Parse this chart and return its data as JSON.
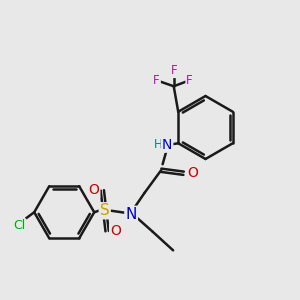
{
  "background_color": "#e8e8e8",
  "atom_colors": {
    "C": "#000000",
    "N": "#0000cc",
    "O": "#cc0000",
    "S": "#c8a000",
    "F": "#cc00cc",
    "Cl": "#00aa00",
    "H": "#008888"
  },
  "bond_color": "#1a1a1a",
  "bond_width": 1.8,
  "figsize": [
    3.0,
    3.0
  ],
  "dpi": 100,
  "xlim": [
    0,
    10
  ],
  "ylim": [
    0,
    10
  ]
}
